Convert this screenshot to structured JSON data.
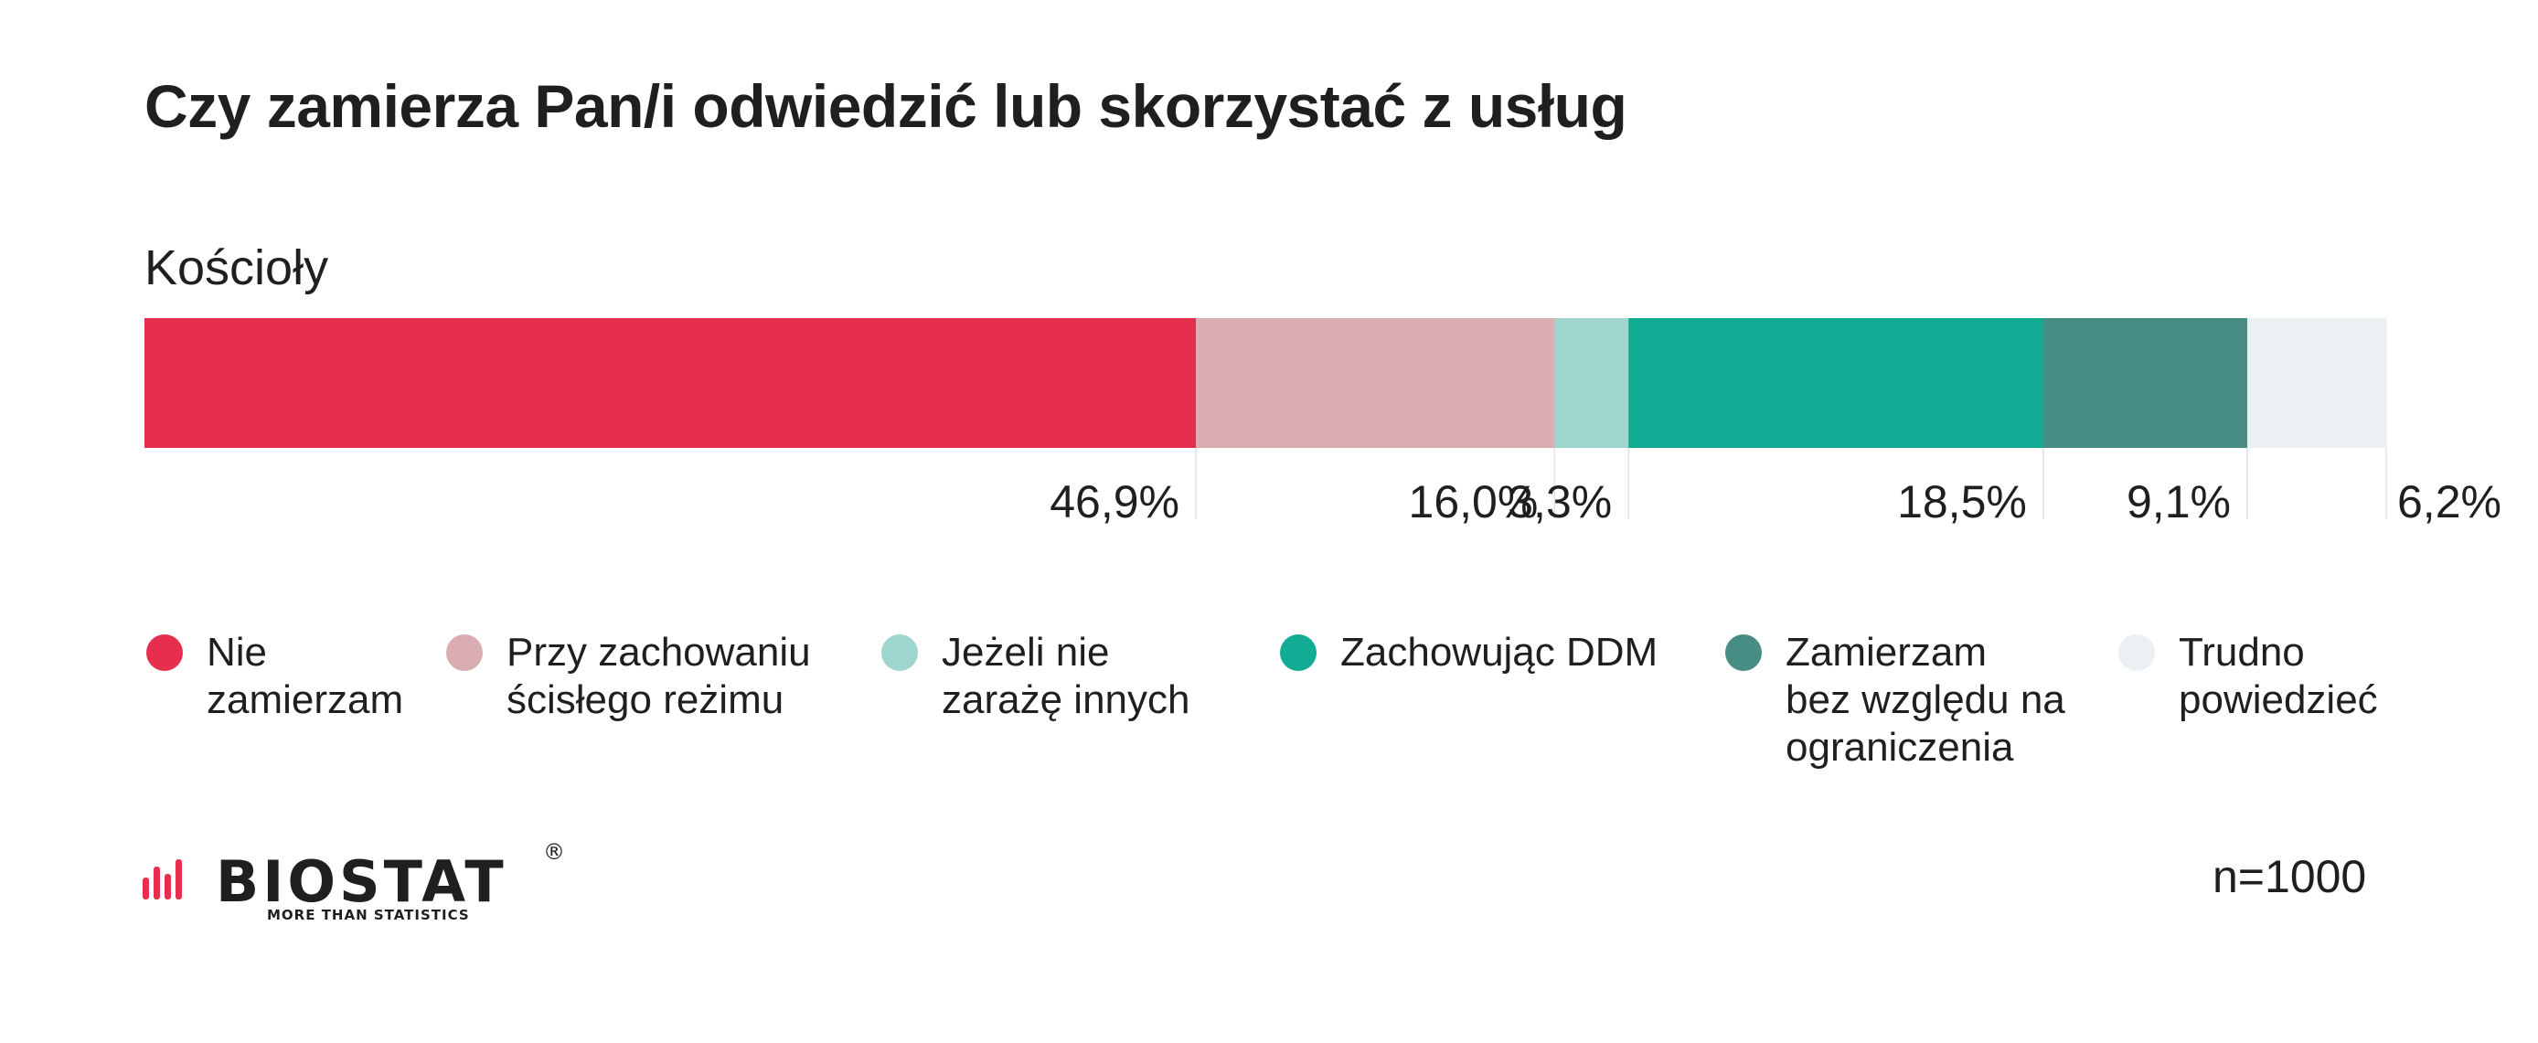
{
  "title": "Czy zamierza Pan/i odwiedzić lub skorzystać z usług",
  "chart_data": {
    "type": "bar",
    "orientation": "horizontal-stacked",
    "categories": [
      "Kościoły"
    ],
    "series": [
      {
        "name": "Nie zamierzam",
        "values": [
          46.9
        ],
        "label": "46,9%",
        "color": "#e62e4f"
      },
      {
        "name": "Przy zachowaniu ścisłego reżimu",
        "values": [
          16.0
        ],
        "label": "16,0%",
        "color": "#daadb3"
      },
      {
        "name": "Jeżeli nie zarażę innych",
        "values": [
          3.3
        ],
        "label": "3,3%",
        "color": "#9ed5cf"
      },
      {
        "name": "Zachowując DDM",
        "values": [
          18.5
        ],
        "label": "18,5%",
        "color": "#12ac95"
      },
      {
        "name": "Zamierzam bez względu na ograniczenia",
        "values": [
          9.1
        ],
        "label": "9,1%",
        "color": "#488d84"
      },
      {
        "name": "Trudno powiedzieć",
        "values": [
          6.2
        ],
        "label": "6,2%",
        "color": "#ebf0f2"
      }
    ],
    "xlim": [
      0,
      100
    ],
    "legend_position": "bottom",
    "grid": false
  },
  "legend": [
    {
      "text": "Nie\nzamierzam"
    },
    {
      "text": "Przy zachowaniu\nścisłego reżimu"
    },
    {
      "text": "Jeżeli nie\nzarażę innych"
    },
    {
      "text": "Zachowując DDM"
    },
    {
      "text": "Zamierzam\nbez względu na\nograniczenia"
    },
    {
      "text": "Trudno\npowiedzieć"
    }
  ],
  "logo": {
    "name": "BIOSTAT",
    "registered": "®",
    "tagline": "MORE THAN STATISTICS"
  },
  "sample_size": "n=1000"
}
